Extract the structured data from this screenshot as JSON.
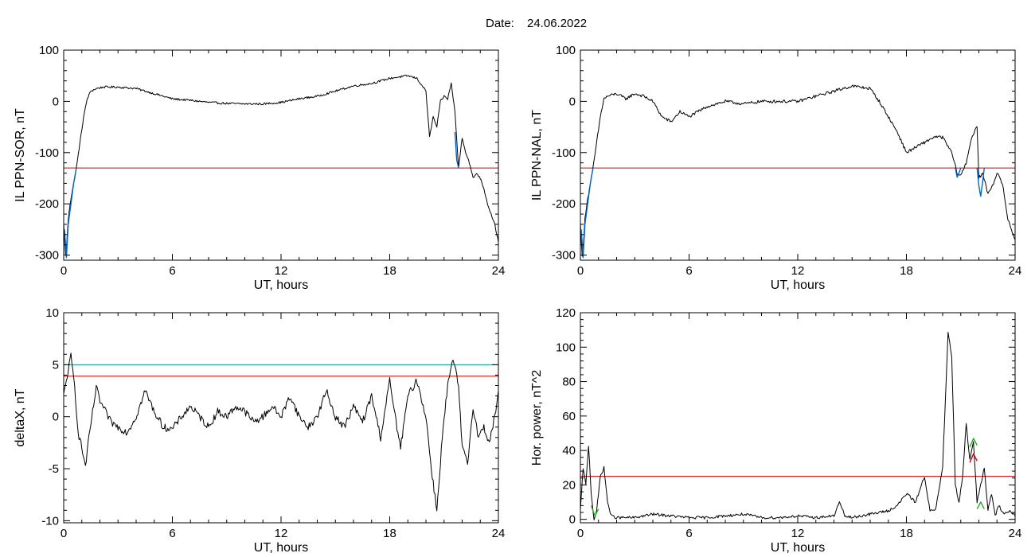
{
  "figure": {
    "date_label": "Date:",
    "date_value": "24.06.2022"
  },
  "colors": {
    "trace": "#000000",
    "threshold": "#cc0000",
    "threshold2": "#009999",
    "highlight": "#0066cc",
    "marker_green": "#22aa22",
    "marker_red": "#cc0000"
  },
  "chart_data": [
    {
      "id": "il-sor",
      "type": "line",
      "xlabel": "UT, hours",
      "ylabel": "IL PPN-SOR, nT",
      "xlim": [
        0,
        24
      ],
      "ylim": [
        -310,
        100
      ],
      "xticks": [
        0,
        6,
        12,
        18,
        24
      ],
      "yticks": [
        100,
        0,
        -100,
        -200,
        -300
      ],
      "thresholds": [
        {
          "y": -130,
          "color": "#cc0000"
        }
      ],
      "series": [
        {
          "color": "#000000",
          "jitter": 2,
          "x": [
            0,
            0.1,
            0.15,
            0.25,
            0.35,
            0.5,
            0.7,
            0.9,
            1.1,
            1.3,
            1.5,
            1.8,
            2.2,
            3,
            4,
            5,
            6,
            7,
            8,
            9,
            10,
            11,
            12,
            13,
            14,
            15,
            16,
            17,
            18,
            19,
            19.5,
            20,
            20.2,
            20.4,
            20.6,
            20.8,
            21,
            21.2,
            21.4,
            21.6,
            21.8,
            22,
            22.2,
            22.4,
            22.6,
            22.8,
            23,
            23.2,
            23.4,
            23.6,
            23.8,
            24
          ],
          "y": [
            -240,
            -300,
            -290,
            -230,
            -200,
            -170,
            -130,
            -80,
            -30,
            5,
            20,
            25,
            28,
            28,
            25,
            15,
            5,
            2,
            -2,
            -4,
            -5,
            -5,
            -2,
            5,
            10,
            20,
            30,
            35,
            45,
            50,
            45,
            20,
            -70,
            -30,
            -50,
            0,
            10,
            5,
            35,
            -20,
            -130,
            -70,
            -100,
            -120,
            -150,
            -140,
            -150,
            -170,
            -200,
            -220,
            -240,
            -275
          ]
        },
        {
          "color": "#0066cc",
          "jitter": 0,
          "x": [
            0.05,
            0.15,
            0.25,
            0.4,
            0.55,
            0.7
          ],
          "y": [
            -250,
            -305,
            -240,
            -200,
            -160,
            -130
          ]
        },
        {
          "color": "#0066cc",
          "jitter": 0,
          "x": [
            21.6,
            21.7,
            21.8
          ],
          "y": [
            -60,
            -115,
            -130
          ]
        }
      ]
    },
    {
      "id": "il-nal",
      "type": "line",
      "xlabel": "UT, hours",
      "ylabel": "IL PPN-NAL, nT",
      "xlim": [
        0,
        24
      ],
      "ylim": [
        -310,
        100
      ],
      "xticks": [
        0,
        6,
        12,
        18,
        24
      ],
      "yticks": [
        100,
        0,
        -100,
        -200,
        -300
      ],
      "thresholds": [
        {
          "y": -130,
          "color": "#cc0000"
        }
      ],
      "series": [
        {
          "color": "#000000",
          "jitter": 3,
          "x": [
            0,
            0.1,
            0.15,
            0.25,
            0.35,
            0.5,
            0.7,
            0.9,
            1.1,
            1.3,
            1.5,
            2,
            2.5,
            3,
            3.5,
            4,
            4.5,
            5,
            5.5,
            6,
            6.5,
            7,
            8,
            9,
            10,
            11,
            12,
            13,
            14,
            15,
            16,
            16.5,
            17,
            17.5,
            18,
            18.5,
            19,
            19.5,
            20,
            20.5,
            20.8,
            21,
            21.3,
            21.6,
            21.9,
            22,
            22.2,
            22.5,
            22.8,
            23,
            23.3,
            23.6,
            24
          ],
          "y": [
            -240,
            -300,
            -290,
            -230,
            -200,
            -170,
            -130,
            -80,
            -30,
            5,
            10,
            15,
            5,
            15,
            10,
            0,
            -30,
            -40,
            -20,
            -30,
            -20,
            -10,
            0,
            -5,
            0,
            0,
            0,
            10,
            20,
            30,
            25,
            0,
            -30,
            -60,
            -100,
            -90,
            -80,
            -70,
            -70,
            -100,
            -140,
            -145,
            -120,
            -70,
            -50,
            -150,
            -140,
            -180,
            -160,
            -140,
            -160,
            -230,
            -270
          ]
        },
        {
          "color": "#0066cc",
          "jitter": 0,
          "x": [
            0.05,
            0.15,
            0.25,
            0.4,
            0.55,
            0.7
          ],
          "y": [
            -250,
            -305,
            -240,
            -200,
            -160,
            -130
          ]
        },
        {
          "color": "#0066cc",
          "jitter": 0,
          "x": [
            20.7,
            20.8,
            20.9,
            21.0
          ],
          "y": [
            -130,
            -148,
            -140,
            -130
          ]
        },
        {
          "color": "#0066cc",
          "jitter": 0,
          "x": [
            21.9,
            22.0,
            22.1,
            22.2,
            22.3
          ],
          "y": [
            -130,
            -165,
            -185,
            -160,
            -130
          ]
        }
      ]
    },
    {
      "id": "deltax",
      "type": "line",
      "xlabel": "UT, hours",
      "ylabel": "deltaX, nT",
      "xlim": [
        0,
        24
      ],
      "ylim": [
        -10.2,
        10
      ],
      "xticks": [
        0,
        6,
        12,
        18,
        24
      ],
      "yticks": [
        10,
        5,
        0,
        -5,
        -10
      ],
      "thresholds": [
        {
          "y": 5,
          "color": "#009999"
        },
        {
          "y": 3.9,
          "color": "#cc0000"
        }
      ],
      "series": [
        {
          "color": "#000000",
          "jitter": 0.35,
          "x": [
            0,
            0.2,
            0.4,
            0.6,
            0.8,
            1.0,
            1.2,
            1.4,
            1.6,
            1.8,
            2.0,
            2.3,
            2.6,
            3.0,
            3.5,
            4.0,
            4.5,
            5.0,
            5.5,
            6.0,
            6.5,
            7.0,
            7.5,
            8.0,
            8.5,
            9.0,
            9.5,
            10.0,
            10.5,
            11.0,
            11.5,
            12.0,
            12.5,
            13.0,
            13.5,
            14.0,
            14.5,
            15.0,
            15.5,
            16.0,
            16.5,
            17.0,
            17.5,
            18.0,
            18.3,
            18.6,
            19.0,
            19.5,
            20.0,
            20.3,
            20.6,
            20.9,
            21.2,
            21.5,
            21.8,
            22.0,
            22.3,
            22.6,
            22.9,
            23.2,
            23.5,
            23.8,
            24.0
          ],
          "y": [
            2,
            4,
            5.8,
            3,
            -1.5,
            -3,
            -4.8,
            -2,
            0.5,
            2.8,
            1.5,
            0.5,
            -0.5,
            -1,
            -1.5,
            0,
            2.5,
            0.5,
            -1,
            -1.2,
            0,
            1,
            0,
            -1,
            0.5,
            0,
            1,
            0.5,
            -0.5,
            0,
            1,
            0,
            2,
            0,
            -1,
            0,
            2.5,
            0,
            -1,
            1,
            -0.5,
            2,
            -2,
            3.5,
            0,
            -3,
            2,
            3.5,
            0,
            -5,
            -9,
            -2,
            3,
            5.5,
            3,
            -3,
            -4.5,
            1,
            -2,
            -1,
            -2.5,
            0,
            2.5
          ]
        }
      ]
    },
    {
      "id": "hor-power",
      "type": "line",
      "xlabel": "UT, hours",
      "ylabel": "Hor. power, nT^2",
      "xlim": [
        0,
        24
      ],
      "ylim": [
        -2,
        120
      ],
      "xticks": [
        0,
        6,
        12,
        18,
        24
      ],
      "yticks": [
        120,
        100,
        80,
        60,
        40,
        20,
        0
      ],
      "thresholds": [
        {
          "y": 25,
          "color": "#cc0000"
        }
      ],
      "series": [
        {
          "color": "#000000",
          "jitter": 0.8,
          "x": [
            0,
            0.15,
            0.3,
            0.45,
            0.6,
            0.75,
            0.9,
            1.1,
            1.3,
            1.5,
            1.7,
            2,
            3,
            4,
            5,
            6,
            7,
            8,
            9,
            10,
            11,
            12,
            13,
            14,
            14.3,
            14.6,
            15,
            16,
            17,
            17.5,
            18,
            18.5,
            19,
            19.3,
            19.6,
            20,
            20.3,
            20.5,
            20.7,
            20.9,
            21.1,
            21.3,
            21.5,
            21.7,
            21.9,
            22.1,
            22.3,
            22.5,
            22.7,
            22.9,
            23.1,
            23.4,
            23.7,
            24
          ],
          "y": [
            5,
            30,
            20,
            43,
            15,
            0,
            5,
            25,
            30,
            10,
            2,
            1,
            1,
            3,
            2,
            1,
            1,
            2,
            3,
            1,
            1,
            2,
            1,
            2,
            10,
            2,
            1,
            3,
            5,
            8,
            15,
            10,
            25,
            5,
            5,
            30,
            108,
            95,
            20,
            10,
            25,
            55,
            35,
            45,
            10,
            20,
            30,
            5,
            15,
            2,
            8,
            3,
            5,
            2
          ]
        },
        {
          "color": "#22aa22",
          "jitter": 0,
          "x": [
            0.6,
            0.8,
            1.0
          ],
          "y": [
            8,
            2,
            6
          ]
        },
        {
          "color": "#22aa22",
          "jitter": 0,
          "x": [
            21.5,
            21.7,
            21.9
          ],
          "y": [
            42,
            47,
            43
          ]
        },
        {
          "color": "#22aa22",
          "jitter": 0,
          "x": [
            21.9,
            22.1,
            22.3
          ],
          "y": [
            6,
            10,
            6
          ]
        },
        {
          "color": "#cc0000",
          "jitter": 0,
          "x": [
            21.5,
            21.7,
            21.9
          ],
          "y": [
            33,
            38,
            34
          ]
        }
      ]
    }
  ]
}
